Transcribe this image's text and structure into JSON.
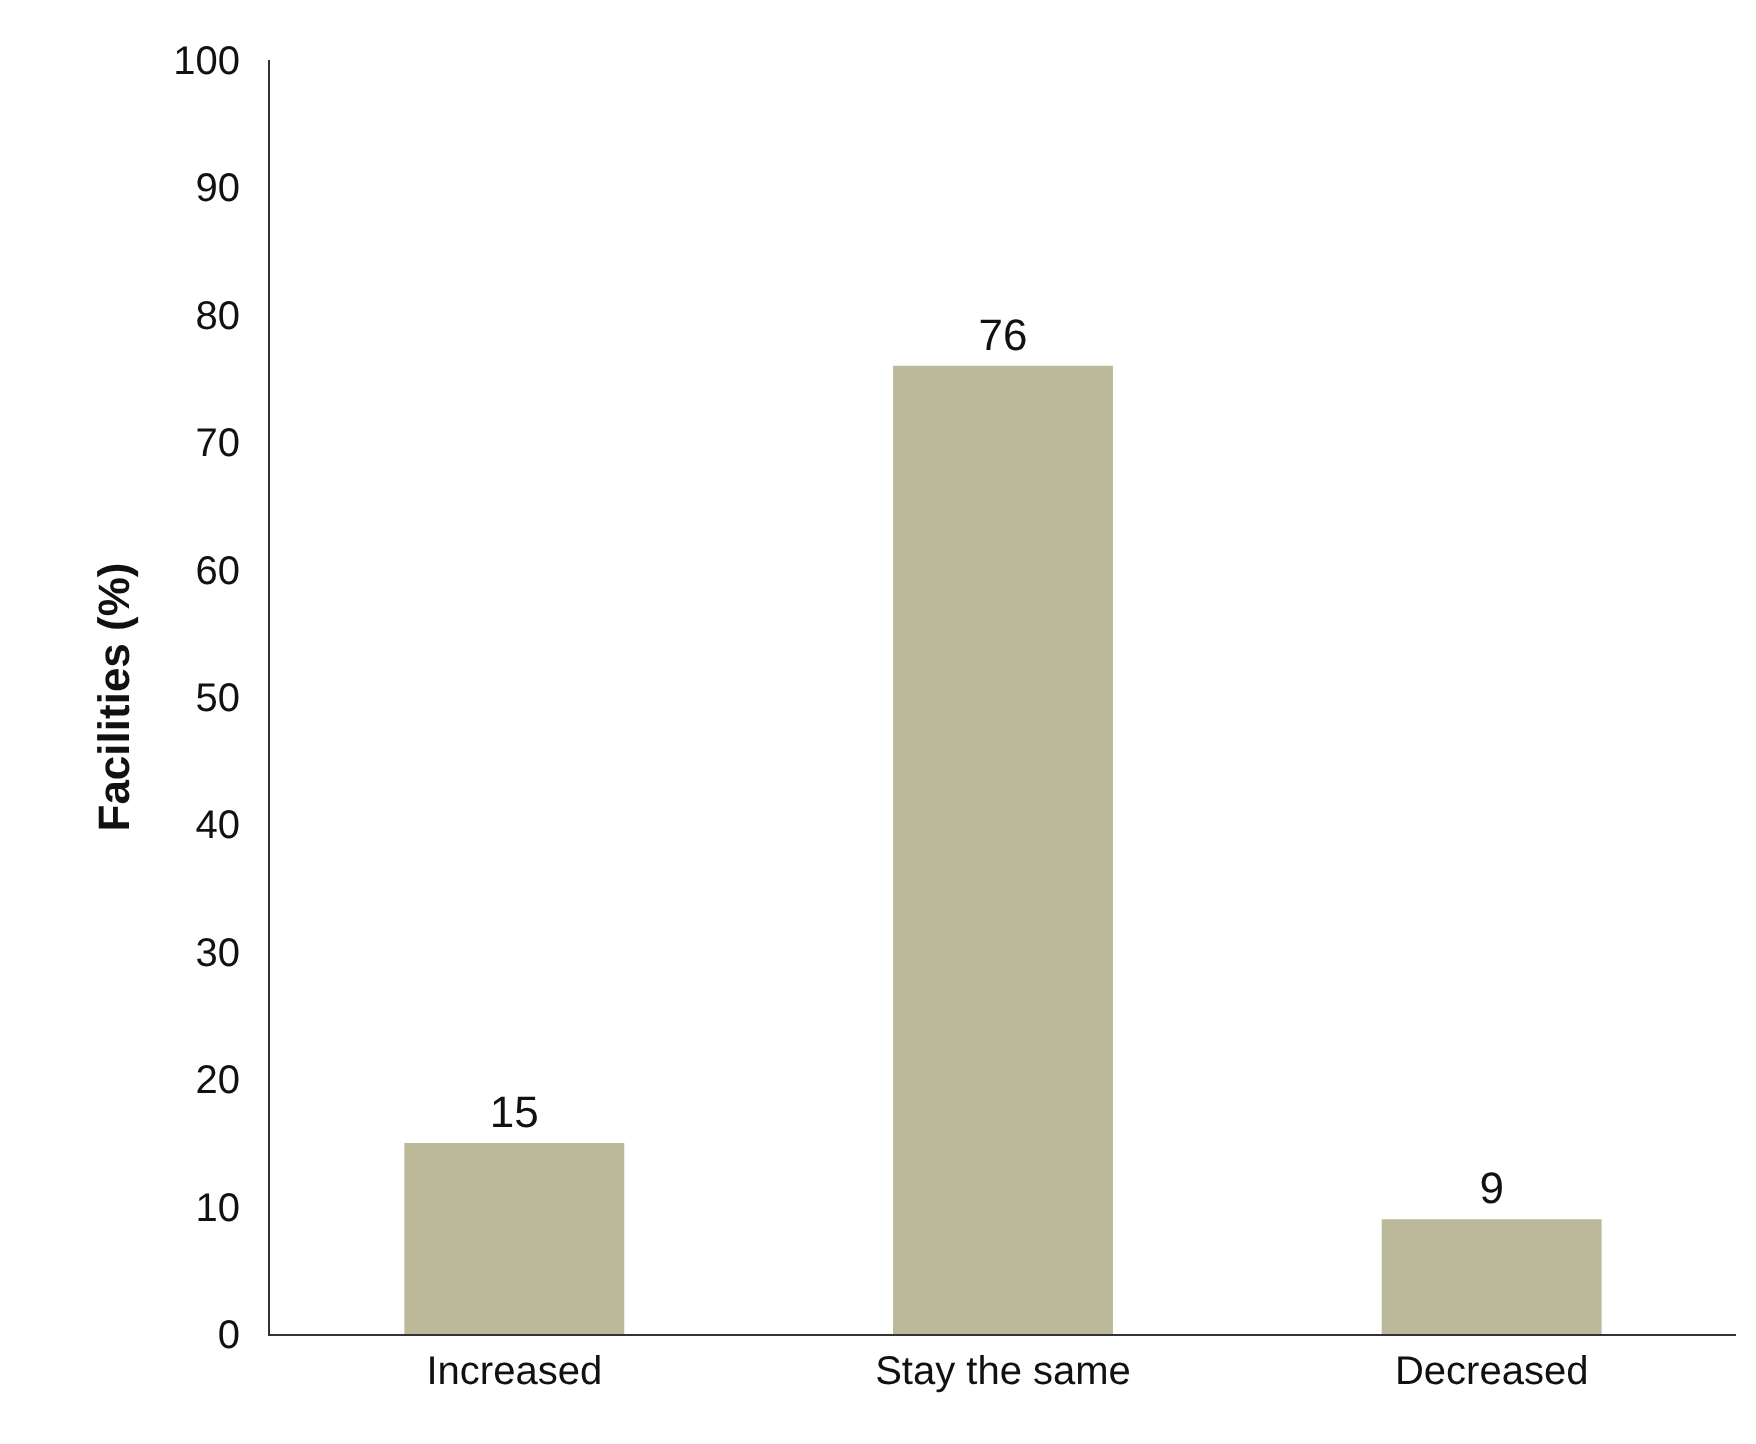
{
  "chart_data": {
    "type": "bar",
    "ylabel": "Facilities (%)",
    "categories": [
      "Increased",
      "Stay the same",
      "Decreased"
    ],
    "values": [
      15,
      76,
      9
    ],
    "color": "#bcb89a",
    "ylim": [
      0,
      100
    ],
    "yticks": [
      0,
      10,
      20,
      30,
      40,
      50,
      60,
      70,
      80,
      90,
      100
    ],
    "data_labels": true
  }
}
